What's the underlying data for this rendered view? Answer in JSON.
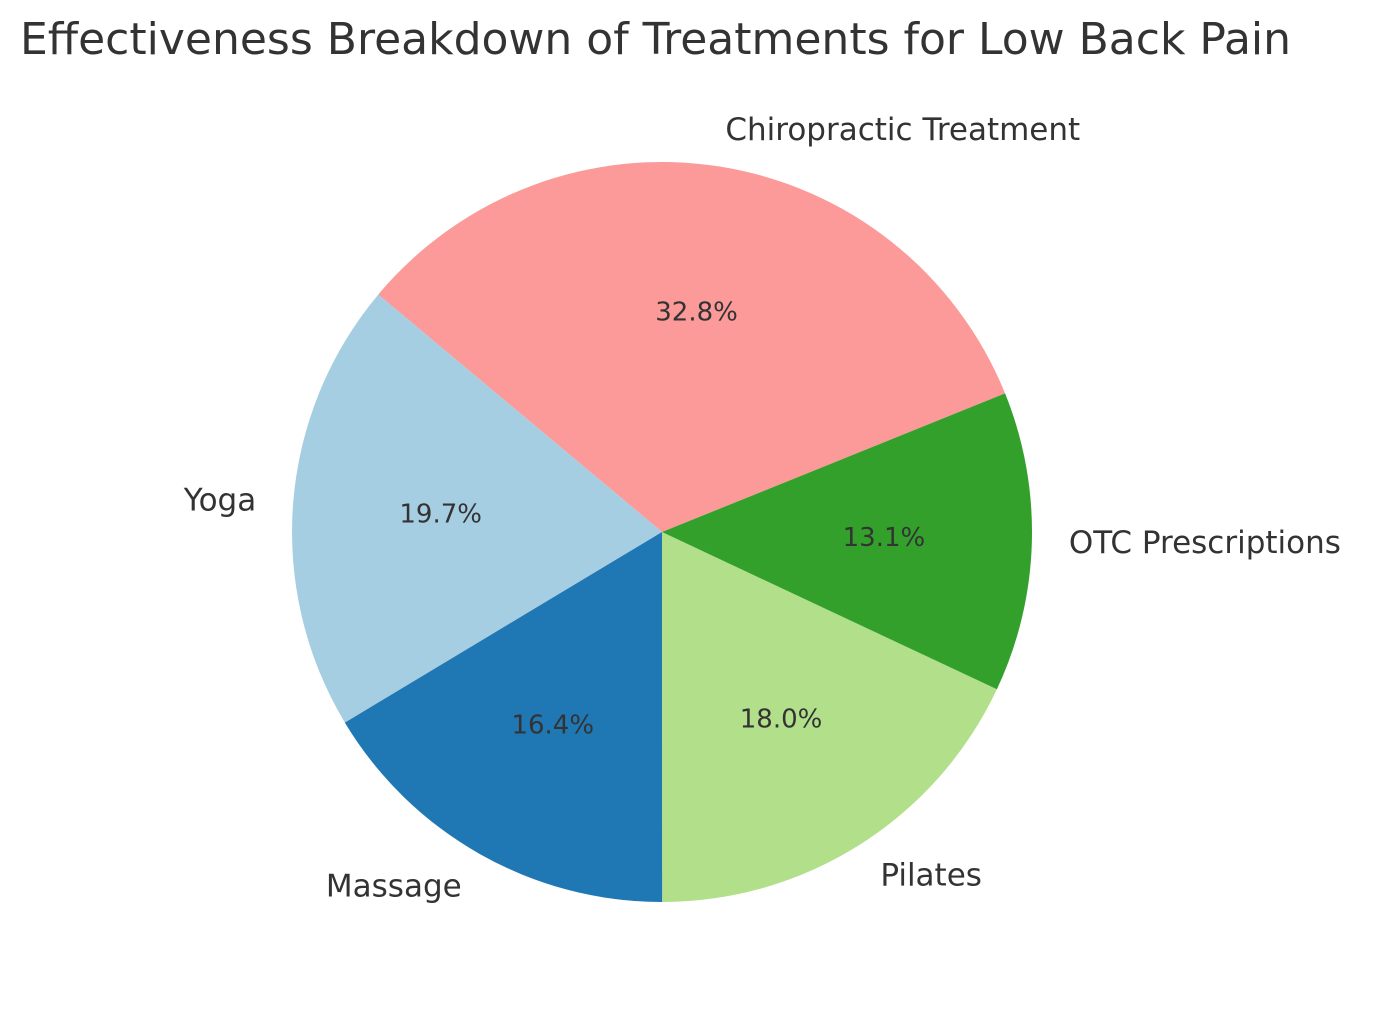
{
  "chart_data": {
    "type": "pie",
    "title": "Effectiveness Breakdown of Treatments for Low Back Pain",
    "categories": [
      "Chiropractic Treatment",
      "Yoga",
      "Massage",
      "Pilates",
      "OTC Prescriptions"
    ],
    "values": [
      32.8,
      19.7,
      16.4,
      18.0,
      13.1
    ],
    "labels_percent": [
      "32.8%",
      "19.7%",
      "16.4%",
      "18.0%",
      "13.1%"
    ],
    "colors": [
      "#fb9a99",
      "#a6cee3",
      "#1f78b4",
      "#b2df8a",
      "#33a02c"
    ],
    "start_angle_deg": 22,
    "direction": "counterclockwise",
    "legend": "none"
  }
}
